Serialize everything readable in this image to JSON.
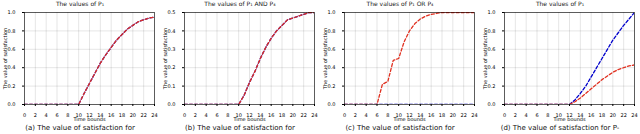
{
  "chart_data": [
    {
      "type": "line",
      "title": "The values of P₁",
      "caption": "(a) The value of satisfaction for",
      "xlabel": "Time bounds",
      "ylabel": "The value of satisfaction",
      "grid": true,
      "x": [
        0,
        1,
        2,
        3,
        4,
        5,
        6,
        7,
        8,
        9,
        10,
        11,
        12,
        13,
        14,
        15,
        16,
        17,
        18,
        19,
        20,
        21,
        22,
        23,
        24
      ],
      "xlim": [
        0,
        24
      ],
      "xticks": [
        0,
        2,
        4,
        6,
        8,
        10,
        12,
        14,
        16,
        18,
        20,
        22,
        24
      ],
      "ylim": [
        0,
        1
      ],
      "yticks": [
        {
          "value": 0,
          "label": "0.0"
        },
        0.2,
        0.4,
        0.6,
        0.8,
        {
          "value": 1,
          "label": "1.0"
        }
      ],
      "series": [
        {
          "color": "#0000cc",
          "line_style": "dashed",
          "values": [
            0,
            0,
            0,
            0,
            0,
            0,
            0,
            0,
            0,
            0,
            0,
            0.12,
            0.23,
            0.34,
            0.45,
            0.54,
            0.62,
            0.7,
            0.76,
            0.82,
            0.86,
            0.9,
            0.92,
            0.94,
            0.95
          ]
        },
        {
          "color": "#e03020",
          "line_style": "dashed",
          "values": [
            0,
            0,
            0,
            0,
            0,
            0,
            0,
            0,
            0,
            0,
            0,
            0.12,
            0.23,
            0.34,
            0.45,
            0.54,
            0.62,
            0.7,
            0.76,
            0.82,
            0.86,
            0.9,
            0.92,
            0.94,
            0.95
          ]
        }
      ]
    },
    {
      "type": "line",
      "title": "The values of P₁ AND P₄",
      "caption": "(b) The value of satisfaction for",
      "xlabel": "Time bounds",
      "ylabel": "The value of satisfaction",
      "grid": true,
      "x": [
        0,
        1,
        2,
        3,
        4,
        5,
        6,
        7,
        8,
        9,
        10,
        11,
        12,
        13,
        14,
        15,
        16,
        17,
        18,
        19,
        20,
        21,
        22,
        23,
        24
      ],
      "xlim": [
        0,
        24
      ],
      "xticks": [
        0,
        2,
        4,
        6,
        8,
        10,
        12,
        14,
        16,
        18,
        20,
        22,
        24
      ],
      "ylim": [
        0,
        0.5
      ],
      "yticks": [
        {
          "value": 0,
          "label": "0.0"
        },
        0.1,
        0.2,
        0.3,
        0.4,
        0.5
      ],
      "series": [
        {
          "color": "#0000cc",
          "line_style": "dashed",
          "values": [
            0,
            0,
            0,
            0,
            0,
            0,
            0,
            0,
            0,
            0,
            0,
            0.05,
            0.12,
            0.18,
            0.25,
            0.31,
            0.36,
            0.4,
            0.43,
            0.46,
            0.47,
            0.48,
            0.49,
            0.5,
            0.5
          ]
        },
        {
          "color": "#e03020",
          "line_style": "dashed",
          "values": [
            0,
            0,
            0,
            0,
            0,
            0,
            0,
            0,
            0,
            0,
            0,
            0.05,
            0.12,
            0.18,
            0.25,
            0.31,
            0.36,
            0.4,
            0.43,
            0.46,
            0.47,
            0.48,
            0.49,
            0.5,
            0.5
          ]
        }
      ]
    },
    {
      "type": "line",
      "title": "The values of P₁ OR P₄",
      "caption": "(c) The value of satisfaction for",
      "xlabel": "Time bounds",
      "ylabel": "The value of satisfaction",
      "grid": true,
      "x": [
        0,
        1,
        2,
        3,
        4,
        5,
        6,
        7,
        8,
        9,
        10,
        11,
        12,
        13,
        14,
        15,
        16,
        17,
        18,
        19,
        20,
        21,
        22,
        23,
        24
      ],
      "xlim": [
        0,
        24
      ],
      "xticks": [
        0,
        2,
        4,
        6,
        8,
        10,
        12,
        14,
        16,
        18,
        20,
        22,
        24
      ],
      "ylim": [
        0,
        1
      ],
      "yticks": [
        {
          "value": 0,
          "label": "0.0"
        },
        0.2,
        0.4,
        0.6,
        0.8,
        {
          "value": 1,
          "label": "1.0"
        }
      ],
      "series": [
        {
          "color": "#0000cc",
          "line_style": "dashed",
          "values": [
            0,
            0,
            0,
            0,
            0,
            0,
            0,
            0,
            0,
            0,
            0,
            0,
            0,
            0,
            0,
            0,
            0,
            0,
            0,
            0,
            0,
            0,
            0,
            0,
            0
          ]
        },
        {
          "color": "#e03020",
          "line_style": "dashed",
          "values": [
            0,
            0,
            0,
            0,
            0,
            0,
            0,
            0.22,
            0.25,
            0.48,
            0.5,
            0.68,
            0.8,
            0.88,
            0.93,
            0.96,
            0.98,
            0.99,
            1,
            1,
            1,
            1,
            1,
            1,
            1
          ]
        }
      ]
    },
    {
      "type": "line",
      "title": "The values of P₁",
      "caption": "(d) The value of satisfaction for P-",
      "xlabel": "Time bounds",
      "ylabel": "The value of satisfaction",
      "grid": true,
      "x": [
        0,
        1,
        2,
        3,
        4,
        5,
        6,
        7,
        8,
        9,
        10,
        11,
        12,
        13,
        14,
        15,
        16,
        17,
        18,
        19,
        20,
        21,
        22,
        23,
        24
      ],
      "xlim": [
        0,
        24
      ],
      "xticks": [
        0,
        2,
        4,
        6,
        8,
        10,
        12,
        14,
        16,
        18,
        20,
        22,
        24
      ],
      "ylim": [
        0,
        1
      ],
      "yticks": [
        {
          "value": 0,
          "label": "0.0"
        },
        0.2,
        0.4,
        0.6,
        0.8,
        {
          "value": 1,
          "label": "1.0"
        }
      ],
      "series": [
        {
          "color": "#0000cc",
          "line_style": "dashed",
          "values": [
            0,
            0,
            0,
            0,
            0,
            0,
            0,
            0,
            0,
            0,
            0,
            0,
            0,
            0.05,
            0.12,
            0.2,
            0.3,
            0.4,
            0.5,
            0.6,
            0.7,
            0.78,
            0.86,
            0.93,
            1
          ]
        },
        {
          "color": "#e03020",
          "line_style": "dashed",
          "values": [
            0,
            0,
            0,
            0,
            0,
            0,
            0,
            0,
            0,
            0,
            0,
            0,
            0,
            0.03,
            0.07,
            0.12,
            0.17,
            0.22,
            0.27,
            0.31,
            0.35,
            0.38,
            0.4,
            0.42,
            0.43
          ]
        }
      ]
    }
  ]
}
